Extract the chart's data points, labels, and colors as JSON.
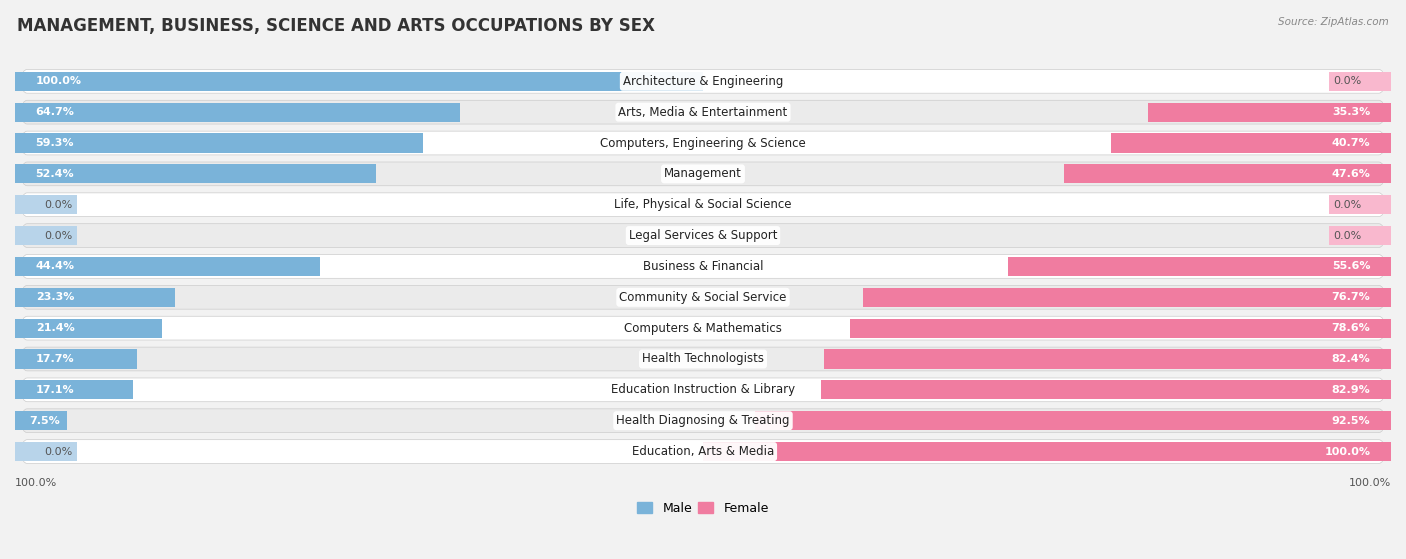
{
  "title": "MANAGEMENT, BUSINESS, SCIENCE AND ARTS OCCUPATIONS BY SEX",
  "source": "Source: ZipAtlas.com",
  "categories": [
    "Architecture & Engineering",
    "Arts, Media & Entertainment",
    "Computers, Engineering & Science",
    "Management",
    "Life, Physical & Social Science",
    "Legal Services & Support",
    "Business & Financial",
    "Community & Social Service",
    "Computers & Mathematics",
    "Health Technologists",
    "Education Instruction & Library",
    "Health Diagnosing & Treating",
    "Education, Arts & Media"
  ],
  "male": [
    100.0,
    64.7,
    59.3,
    52.4,
    0.0,
    0.0,
    44.4,
    23.3,
    21.4,
    17.7,
    17.1,
    7.5,
    0.0
  ],
  "female": [
    0.0,
    35.3,
    40.7,
    47.6,
    0.0,
    0.0,
    55.6,
    76.7,
    78.6,
    82.4,
    82.9,
    92.5,
    100.0
  ],
  "male_color": "#7ab3d9",
  "female_color": "#f07ca0",
  "male_zero_color": "#b8d4ea",
  "female_zero_color": "#f9b8ce",
  "bg_color": "#f2f2f2",
  "row_bg_even": "#ffffff",
  "row_bg_odd": "#ebebeb",
  "title_fontsize": 12,
  "label_fontsize": 8.5,
  "value_fontsize": 8,
  "legend_fontsize": 9,
  "xlabel_fontsize": 8
}
